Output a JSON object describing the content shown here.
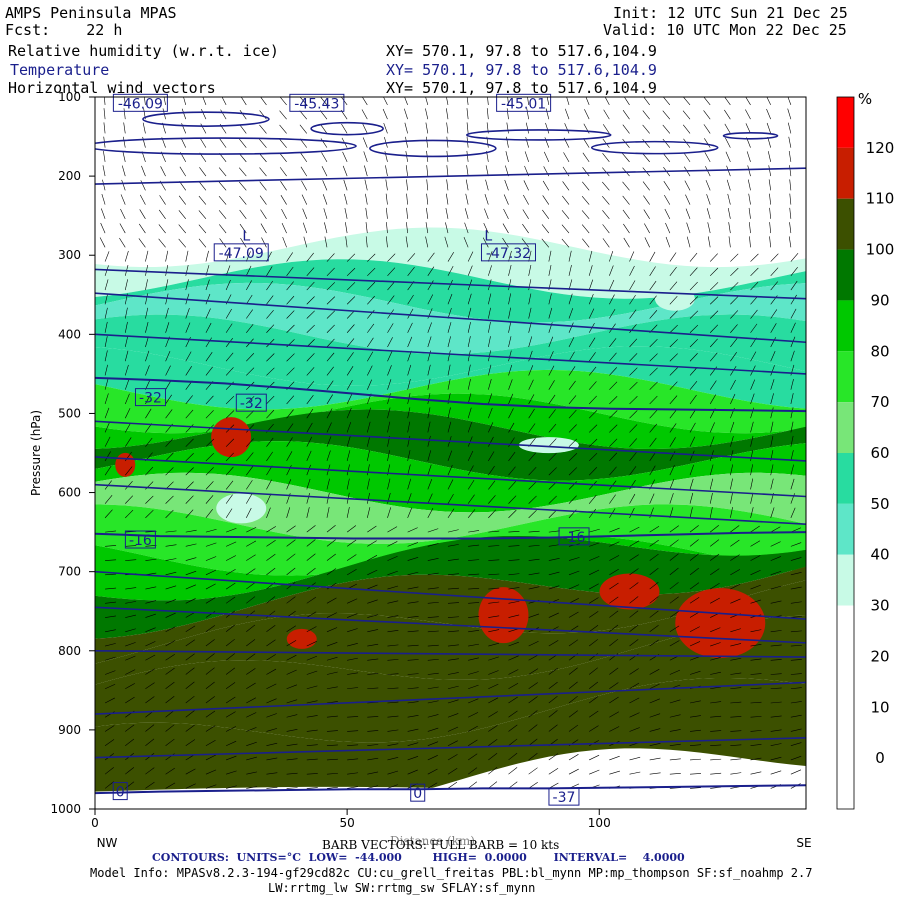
{
  "header": {
    "model": "AMPS Peninsula MPAS",
    "init": "Init: 12 UTC Sun 21 Dec 25",
    "fcst": "Fcst:    22 h",
    "valid": "Valid: 10 UTC Mon 22 Dec 25",
    "fields": [
      {
        "name": "Relative humidity (w.r.t. ice)",
        "xy": "XY= 570.1, 97.8 to 517.6,104.9"
      },
      {
        "name": "Temperature",
        "xy": "XY= 570.1, 97.8 to 517.6,104.9"
      },
      {
        "name": "Horizontal wind vectors",
        "xy": "XY= 570.1, 97.8 to 517.6,104.9"
      }
    ]
  },
  "footer": {
    "barb": "BARB VECTORS: FULL BARB = 10 kts",
    "distance": "Distance (km)",
    "contours": "CONTOURS:  UNITS=°C  LOW=  -44.000        HIGH=  0.0000       INTERVAL=    4.0000",
    "model_info": "Model Info: MPASv8.2.3-194-gf29cd82c CU:cu_grell_freitas PBL:bl_mynn MP:mp_thompson SF:sf_noahmp 2.7",
    "model_info2": "LW:rrtmg_lw SW:rrtmg_sw SFLAY:sf_mynn"
  },
  "chart_data": {
    "type": "heatmap",
    "title": "Relative humidity (w.r.t. ice), Temperature, Horizontal wind vectors",
    "xlabel": "Distance (km)",
    "ylabel": "Pressure (hPa)",
    "xlim": [
      0,
      141
    ],
    "ylim": [
      1000,
      100
    ],
    "x_ticks": [
      0,
      50,
      100
    ],
    "y_ticks": [
      100,
      200,
      300,
      400,
      500,
      600,
      700,
      800,
      900,
      1000
    ],
    "x_end_labels": {
      "left": "NW",
      "right": "SE"
    },
    "colorbar": {
      "unit": "%",
      "ticks": [
        0,
        10,
        20,
        30,
        40,
        50,
        60,
        70,
        80,
        90,
        100,
        110,
        120
      ],
      "bins": [
        {
          "from": -10,
          "to": 0,
          "color": "#ffffff"
        },
        {
          "from": 0,
          "to": 10,
          "color": "#ffffff"
        },
        {
          "from": 10,
          "to": 20,
          "color": "#ffffff"
        },
        {
          "from": 20,
          "to": 30,
          "color": "#ffffff"
        },
        {
          "from": 30,
          "to": 40,
          "color": "#c8fae6"
        },
        {
          "from": 40,
          "to": 50,
          "color": "#5ee6c8"
        },
        {
          "from": 50,
          "to": 60,
          "color": "#28dca0"
        },
        {
          "from": 60,
          "to": 70,
          "color": "#78e678"
        },
        {
          "from": 70,
          "to": 80,
          "color": "#28e628"
        },
        {
          "from": 80,
          "to": 90,
          "color": "#00c800"
        },
        {
          "from": 90,
          "to": 100,
          "color": "#007800"
        },
        {
          "from": 100,
          "to": 110,
          "color": "#3c5000"
        },
        {
          "from": 110,
          "to": 120,
          "color": "#c81e00"
        },
        {
          "from": 120,
          "to": 130,
          "color": "#ff0000"
        }
      ]
    },
    "contour_color": "#1a1f8c",
    "temperature_isotherms": [
      {
        "label": "-32",
        "p": [
          455,
          458,
          462,
          468,
          475,
          482,
          488,
          492,
          494,
          495,
          496,
          497
        ]
      },
      {
        "label": "-16",
        "p": [
          652,
          655,
          656,
          657,
          658,
          658,
          658,
          657,
          655,
          653,
          651,
          650
        ]
      },
      {
        "label": "0",
        "p": [
          980,
          978,
          977,
          976,
          975,
          975,
          974,
          974,
          973,
          972,
          971,
          970
        ]
      }
    ],
    "contour_labels": [
      {
        "text": "-46.09",
        "x": 9,
        "p": 108
      },
      {
        "text": "-45.43",
        "x": 44,
        "p": 108
      },
      {
        "text": "-45.01",
        "x": 85,
        "p": 108
      },
      {
        "text": "L",
        "x": 30,
        "p": 275
      },
      {
        "text": "-47.09",
        "x": 29,
        "p": 297
      },
      {
        "text": "L",
        "x": 78,
        "p": 275
      },
      {
        "text": "-47.32",
        "x": 82,
        "p": 297
      },
      {
        "text": "-32",
        "x": 11,
        "p": 480
      },
      {
        "text": "-32",
        "x": 31,
        "p": 487
      },
      {
        "text": "-16",
        "x": 9,
        "p": 660
      },
      {
        "text": "-16",
        "x": 95,
        "p": 656
      },
      {
        "text": "0",
        "x": 5,
        "p": 978
      },
      {
        "text": "0",
        "x": 64,
        "p": 980
      },
      {
        "text": "-37",
        "x": 93,
        "p": 985
      }
    ]
  }
}
